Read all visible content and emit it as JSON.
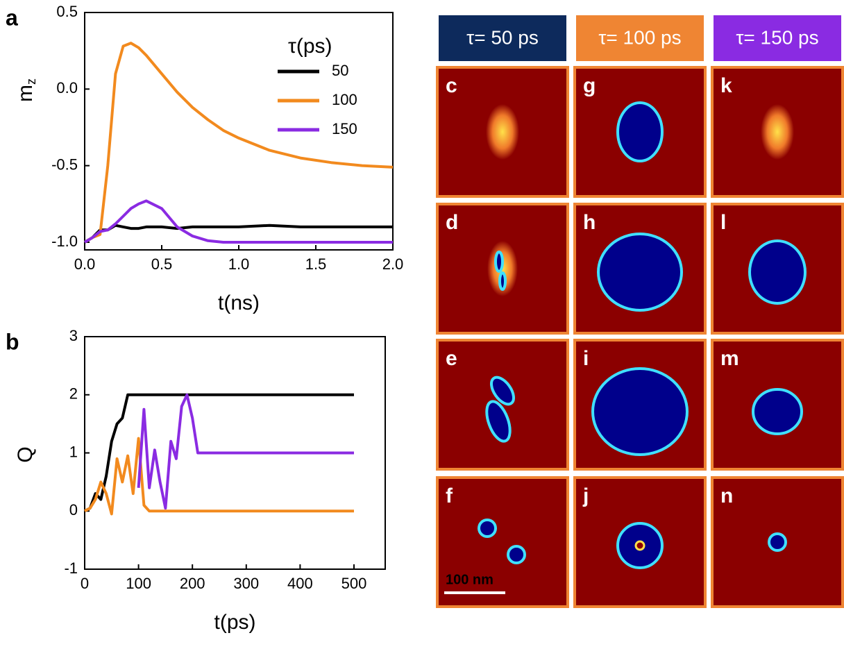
{
  "chart_data": [
    {
      "type": "line",
      "panel_label": "a",
      "x_label": "t(ns)",
      "y_label": "m",
      "y_label_sub": "z",
      "legend_title": "τ(ps)",
      "legend": "upper right",
      "xlim": [
        0,
        2
      ],
      "ylim": [
        -1.05,
        0.5
      ],
      "xticks": [
        {
          "value": 0,
          "label": "0.0"
        },
        {
          "value": 0.5,
          "label": "0.5"
        },
        {
          "value": 1,
          "label": "1.0"
        },
        {
          "value": 1.5,
          "label": "1.5"
        },
        {
          "value": 2,
          "label": "2.0"
        }
      ],
      "yticks": [
        {
          "value": -1,
          "label": "-1.0"
        },
        {
          "value": -0.5,
          "label": "-0.5"
        },
        {
          "value": 0,
          "label": "0.0"
        },
        {
          "value": 0.5,
          "label": "0.5"
        }
      ],
      "x": [
        0,
        0.05,
        0.1,
        0.15,
        0.2,
        0.25,
        0.3,
        0.35,
        0.4,
        0.5,
        0.6,
        0.7,
        0.8,
        0.9,
        1.0,
        1.2,
        1.4,
        1.6,
        1.8,
        2.0
      ],
      "series": [
        {
          "name": "50",
          "color": "#000000",
          "values": [
            -1.0,
            -0.97,
            -0.92,
            -0.92,
            -0.89,
            -0.9,
            -0.91,
            -0.91,
            -0.9,
            -0.9,
            -0.91,
            -0.9,
            -0.9,
            -0.9,
            -0.9,
            -0.89,
            -0.9,
            -0.9,
            -0.9,
            -0.9
          ]
        },
        {
          "name": "100",
          "color": "#f28a1e",
          "values": [
            -1.0,
            -0.97,
            -0.95,
            -0.5,
            0.1,
            0.28,
            0.3,
            0.27,
            0.22,
            0.1,
            -0.02,
            -0.12,
            -0.2,
            -0.27,
            -0.32,
            -0.4,
            -0.45,
            -0.48,
            -0.5,
            -0.51
          ]
        },
        {
          "name": "150",
          "color": "#8a2be2",
          "values": [
            -1.0,
            -0.97,
            -0.93,
            -0.92,
            -0.88,
            -0.83,
            -0.78,
            -0.75,
            -0.73,
            -0.78,
            -0.9,
            -0.96,
            -0.99,
            -1.0,
            -1.0,
            -1.0,
            -1.0,
            -1.0,
            -1.0,
            -1.0
          ]
        }
      ]
    },
    {
      "type": "line",
      "panel_label": "b",
      "x_label": "t(ps)",
      "y_label": "Q",
      "xlim": [
        0,
        558
      ],
      "ylim": [
        -1,
        3
      ],
      "xticks": [
        0,
        100,
        200,
        300,
        400,
        500
      ],
      "yticks": [
        -1,
        0,
        1,
        2,
        3
      ],
      "x": [
        0,
        10,
        20,
        30,
        40,
        50,
        60,
        70,
        80,
        90,
        100,
        110,
        120,
        130,
        140,
        150,
        160,
        170,
        180,
        190,
        200,
        210,
        300,
        400,
        500
      ],
      "series": [
        {
          "name": "50",
          "color": "#000000",
          "values": [
            0,
            0.05,
            0.3,
            0.2,
            0.6,
            1.2,
            1.5,
            1.6,
            2.0,
            2.0,
            2.0,
            2.0,
            2.0,
            2.0,
            2.0,
            2.0,
            2.0,
            2.0,
            2.0,
            2.0,
            2.0,
            2.0,
            2.0,
            2.0,
            2.0
          ]
        },
        {
          "name": "100",
          "color": "#f28a1e",
          "values": [
            0,
            0.05,
            0.2,
            0.5,
            0.3,
            -0.05,
            0.9,
            0.5,
            0.95,
            0.3,
            1.25,
            0.1,
            0,
            0,
            0,
            0,
            0,
            0,
            0,
            0,
            0,
            0,
            0,
            0,
            0
          ]
        },
        {
          "name": "150",
          "color": "#8a2be2",
          "values": [
            null,
            null,
            null,
            null,
            null,
            null,
            null,
            null,
            null,
            null,
            0.4,
            1.75,
            0.4,
            1.05,
            0.5,
            0.05,
            1.2,
            0.9,
            1.8,
            2.0,
            1.6,
            1.0,
            1.0,
            1.0,
            1.0
          ]
        }
      ]
    }
  ],
  "panels": {
    "headers": [
      {
        "text": "τ= 50 ps",
        "color": "#0d2a5c"
      },
      {
        "text": "τ= 100 ps",
        "color": "#ef8533"
      },
      {
        "text": "τ= 150 ps",
        "color": "#8a2be2"
      }
    ],
    "labels": [
      [
        "c",
        "d",
        "e",
        "f"
      ],
      [
        "g",
        "h",
        "i",
        "j"
      ],
      [
        "k",
        "l",
        "m",
        "n"
      ]
    ],
    "scale_bar": "100 nm"
  }
}
